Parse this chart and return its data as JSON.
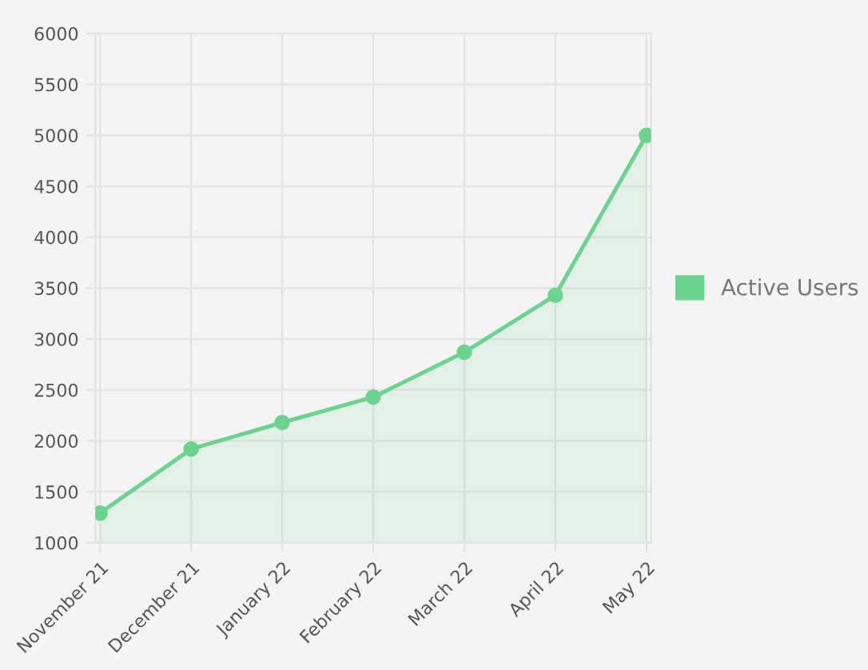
{
  "chart_data": {
    "type": "area",
    "categories": [
      "November 21",
      "December 21",
      "January 22",
      "February 22",
      "March 22",
      "April 22",
      "May 22"
    ],
    "series": [
      {
        "name": "Active Users",
        "color": "#6cd38e",
        "values": [
          1290,
          1920,
          2180,
          2430,
          2870,
          3430,
          5000
        ]
      }
    ],
    "ylim": [
      1000,
      6000
    ],
    "yticks": [
      1000,
      1500,
      2000,
      2500,
      3000,
      3500,
      4000,
      4500,
      5000,
      5500,
      6000
    ],
    "grid": true,
    "legend": "right",
    "marker": "circle"
  }
}
